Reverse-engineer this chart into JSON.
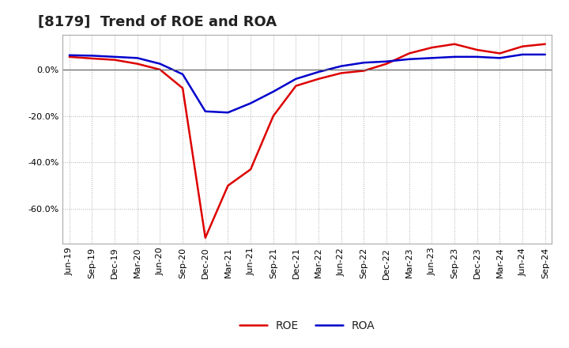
{
  "title": "[8179]  Trend of ROE and ROA",
  "x_labels": [
    "Jun-19",
    "Sep-19",
    "Dec-19",
    "Mar-20",
    "Jun-20",
    "Sep-20",
    "Dec-20",
    "Mar-21",
    "Jun-21",
    "Sep-21",
    "Dec-21",
    "Mar-22",
    "Jun-22",
    "Sep-22",
    "Dec-22",
    "Mar-23",
    "Jun-23",
    "Sep-23",
    "Dec-23",
    "Mar-24",
    "Jun-24",
    "Sep-24"
  ],
  "roe": [
    5.5,
    4.8,
    4.2,
    2.5,
    0.0,
    -8.0,
    -72.5,
    -50.0,
    -43.0,
    -20.0,
    -7.0,
    -4.0,
    -1.5,
    -0.5,
    2.5,
    7.0,
    9.5,
    11.0,
    8.5,
    7.0,
    10.0,
    11.0
  ],
  "roa": [
    6.2,
    6.0,
    5.5,
    5.0,
    2.5,
    -2.0,
    -18.0,
    -18.5,
    -14.5,
    -9.5,
    -4.0,
    -1.0,
    1.5,
    3.0,
    3.5,
    4.5,
    5.0,
    5.5,
    5.5,
    5.0,
    6.5,
    6.5
  ],
  "roe_color": "#dd0000",
  "roa_color": "#0000cc",
  "background_color": "#ffffff",
  "plot_bg_color": "#ffffff",
  "grid_color": "#999999",
  "ylim": [
    -75,
    15
  ],
  "yticks": [
    0,
    -20,
    -40,
    -60
  ],
  "title_fontsize": 13,
  "tick_fontsize": 8,
  "legend_fontsize": 10,
  "linewidth": 1.8
}
